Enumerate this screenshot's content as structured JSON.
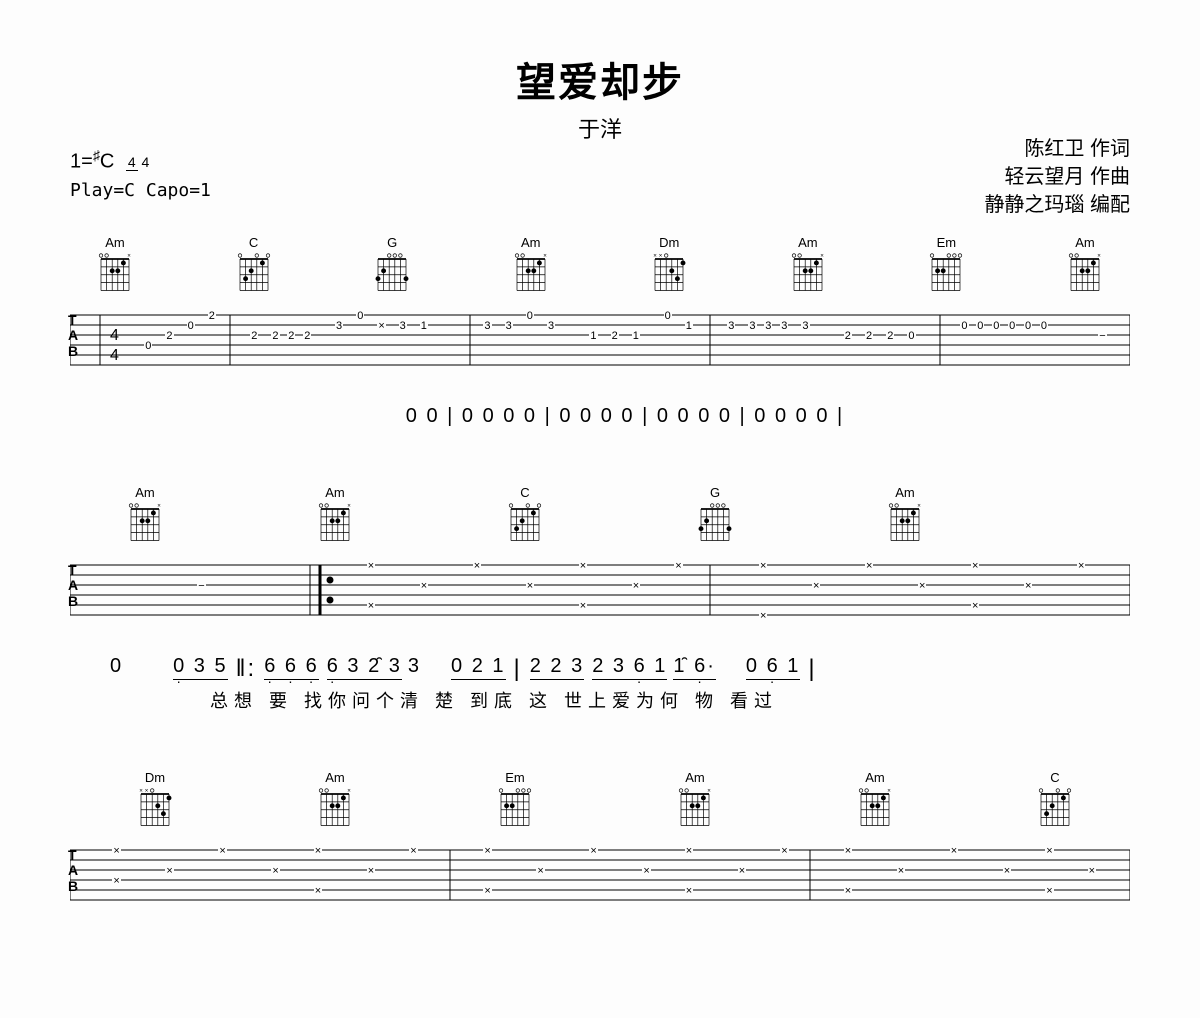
{
  "title": "望爱却步",
  "artist": "于洋",
  "key": "1=",
  "key_accidental": "♯",
  "key_letter": "C",
  "time_num": "4",
  "time_den": "4",
  "play_info": "Play=C Capo=1",
  "credits": {
    "lyricist": "陈红卫 作词",
    "composer": "轻云望月 作曲",
    "arranger": "静静之玛瑙 编配"
  },
  "chords": {
    "Am": {
      "name": "Am",
      "frets": [
        [
          1,
          1
        ],
        [
          2,
          2
        ],
        [
          3,
          2
        ]
      ],
      "mute": [
        0
      ],
      "open": [
        4,
        5
      ]
    },
    "C": {
      "name": "C",
      "frets": [
        [
          1,
          1
        ],
        [
          3,
          2
        ],
        [
          4,
          3
        ]
      ],
      "mute": [],
      "open": [
        0,
        2,
        5
      ]
    },
    "G": {
      "name": "G",
      "frets": [
        [
          0,
          3
        ],
        [
          4,
          2
        ],
        [
          5,
          3
        ]
      ],
      "mute": [],
      "open": [
        1,
        2,
        3
      ]
    },
    "Dm": {
      "name": "Dm",
      "frets": [
        [
          0,
          1
        ],
        [
          1,
          3
        ],
        [
          2,
          2
        ]
      ],
      "mute": [
        4,
        5
      ],
      "open": [
        3
      ]
    },
    "Em": {
      "name": "Em",
      "frets": [
        [
          3,
          2
        ],
        [
          4,
          2
        ]
      ],
      "mute": [],
      "open": [
        0,
        1,
        2,
        5
      ]
    }
  },
  "system1": {
    "chords": [
      "Am",
      "C",
      "G",
      "Am",
      "Dm",
      "Am",
      "Em",
      "Am"
    ],
    "numbers": "0      0  |  0     0     0     0   |   0     0     0     0   |  0     0     0     0   |  0     0     0  0  |"
  },
  "system2": {
    "chords": [
      "Am",
      "Am",
      "C",
      "G",
      "Am"
    ],
    "numbers_pre": "0        ",
    "numbers_groups": [
      {
        "notes": "0 3 5",
        "lyrics": "总想"
      },
      {
        "notes": "6 6 6",
        "lyrics": "要 找你"
      },
      {
        "notes": "6 3 2 3",
        "lyrics": "问个清"
      },
      {
        "notes": "3",
        "lyrics": "楚"
      },
      {
        "notes": "0 2 1",
        "lyrics": "到底"
      },
      {
        "notes": "2 2 3",
        "lyrics": "这 世上"
      },
      {
        "notes": "2 3 6 1",
        "lyrics": "爱为何"
      },
      {
        "notes": "1 6·",
        "lyrics": "物"
      },
      {
        "notes": "0 6 1",
        "lyrics": "看过"
      }
    ],
    "lyrics_line": "总想   要 找你问个清 楚    到底  这 世上爱为何 物     看过"
  },
  "system3": {
    "chords": [
      "Dm",
      "Am",
      "Em",
      "Am",
      "Am",
      "C"
    ]
  }
}
